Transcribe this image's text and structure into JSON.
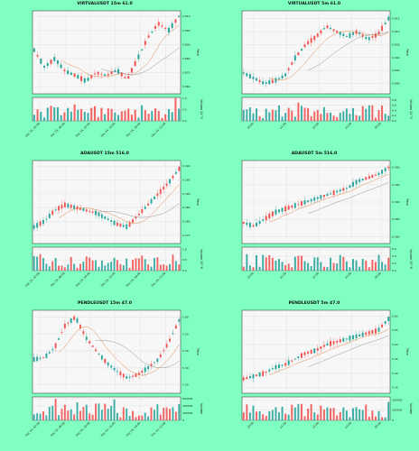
{
  "chart_data": [
    {
      "type": "candlestick",
      "title": "VIRTUALUSDT 15m 61.0",
      "ylabel_price": "Price",
      "ylabel_volume": "Volume  10^5",
      "price_ticks": [
        [
          "0.910",
          0.91
        ],
        [
          "0.900",
          0.9
        ],
        [
          "0.890",
          0.89
        ],
        [
          "0.880",
          0.88
        ],
        [
          "0.870",
          0.87
        ],
        [
          "0.860",
          0.86
        ]
      ],
      "ylim": [
        0.855,
        0.914
      ],
      "volume_ticks": [
        [
          "1.0",
          1.0
        ],
        [
          "0.5",
          0.5
        ],
        [
          "0.0",
          0.0
        ]
      ],
      "vlim": [
        0,
        1.05
      ],
      "x_ticks": [
        [
          "Dec 24, 02:00",
          0.05
        ],
        [
          "Dec 24, 06:00",
          0.22
        ],
        [
          "Dec 24, 10:00",
          0.39
        ],
        [
          "Dec 24, 14:00",
          0.56
        ],
        [
          "Dec 24, 18:00",
          0.73
        ],
        [
          "Dec 24, 22:00",
          0.9
        ]
      ],
      "waypoints": [
        0.886,
        0.874,
        0.88,
        0.871,
        0.868,
        0.864,
        0.87,
        0.868,
        0.872,
        0.865,
        0.88,
        0.895,
        0.905,
        0.9,
        0.91
      ],
      "n": 44,
      "seed": 11,
      "ma_periods": [
        9,
        21
      ]
    },
    {
      "type": "candlestick",
      "title": "VIRTUALUSDT 5m 61.0",
      "ylabel_price": "Price",
      "ylabel_volume": "Volume  10^5",
      "price_ticks": [
        [
          "0.915",
          0.915
        ],
        [
          "0.910",
          0.91
        ],
        [
          "0.905",
          0.905
        ],
        [
          "0.900",
          0.9
        ],
        [
          "0.895",
          0.895
        ],
        [
          "0.890",
          0.89
        ]
      ],
      "ylim": [
        0.886,
        0.918
      ],
      "volume_ticks": [
        [
          "0.8",
          0.8
        ],
        [
          "0.6",
          0.6
        ],
        [
          "0.4",
          0.4
        ],
        [
          "0.2",
          0.2
        ],
        [
          "0.0",
          0.0
        ]
      ],
      "vlim": [
        0,
        0.9
      ],
      "x_ticks": [
        [
          "20:00",
          0.08
        ],
        [
          "21:00",
          0.3
        ],
        [
          "22:00",
          0.52
        ],
        [
          "23:00",
          0.74
        ],
        [
          "00:00",
          0.94
        ]
      ],
      "waypoints": [
        0.894,
        0.892,
        0.89,
        0.891,
        0.893,
        0.9,
        0.905,
        0.908,
        0.912,
        0.91,
        0.908,
        0.91,
        0.907,
        0.909,
        0.915
      ],
      "n": 46,
      "seed": 23,
      "ma_periods": [
        9,
        21
      ]
    },
    {
      "type": "candlestick",
      "title": "ADAUSDT 15m 516.0",
      "ylabel_price": "Price",
      "ylabel_volume": "Volume  10^6",
      "price_ticks": [
        [
          "0.400",
          0.4
        ],
        [
          "0.395",
          0.395
        ],
        [
          "0.390",
          0.39
        ],
        [
          "0.385",
          0.385
        ],
        [
          "0.380",
          0.38
        ],
        [
          "0.375",
          0.375
        ]
      ],
      "ylim": [
        0.372,
        0.402
      ],
      "volume_ticks": [
        [
          "1.0",
          1.0
        ],
        [
          "0.5",
          0.5
        ],
        [
          "0.0",
          0.0
        ]
      ],
      "vlim": [
        0,
        1.1
      ],
      "x_ticks": [
        [
          "Dec 24, 02:00",
          0.05
        ],
        [
          "Dec 24, 06:00",
          0.22
        ],
        [
          "Dec 24, 10:00",
          0.39
        ],
        [
          "Dec 24, 14:00",
          0.56
        ],
        [
          "Dec 24, 18:00",
          0.73
        ],
        [
          "Dec 24, 22:00",
          0.9
        ]
      ],
      "waypoints": [
        0.378,
        0.38,
        0.384,
        0.386,
        0.385,
        0.384,
        0.383,
        0.381,
        0.379,
        0.378,
        0.382,
        0.386,
        0.39,
        0.394,
        0.399
      ],
      "n": 48,
      "seed": 37,
      "ma_periods": [
        9,
        21
      ]
    },
    {
      "type": "candlestick",
      "title": "ADAUSDT 5m 516.0",
      "ylabel_price": "Price",
      "ylabel_volume": "Volume  10^6",
      "price_ticks": [
        [
          "0.400",
          0.4
        ],
        [
          "0.395",
          0.395
        ],
        [
          "0.390",
          0.39
        ],
        [
          "0.385",
          0.385
        ],
        [
          "0.380",
          0.38
        ]
      ],
      "ylim": [
        0.378,
        0.402
      ],
      "volume_ticks": [
        [
          "0.6",
          0.6
        ],
        [
          "0.4",
          0.4
        ],
        [
          "0.2",
          0.2
        ],
        [
          "0.0",
          0.0
        ]
      ],
      "vlim": [
        0,
        0.65
      ],
      "x_ticks": [
        [
          "20:00",
          0.08
        ],
        [
          "21:00",
          0.3
        ],
        [
          "22:00",
          0.52
        ],
        [
          "23:00",
          0.74
        ],
        [
          "00:00",
          0.94
        ]
      ],
      "waypoints": [
        0.384,
        0.383,
        0.385,
        0.387,
        0.388,
        0.389,
        0.39,
        0.391,
        0.392,
        0.393,
        0.394,
        0.396,
        0.397,
        0.398,
        0.4
      ],
      "n": 46,
      "seed": 51,
      "ma_periods": [
        9,
        21
      ]
    },
    {
      "type": "candlestick",
      "title": "PENDLEUSDT 15m 47.0",
      "ylabel_price": "Price",
      "ylabel_volume": "Volume",
      "price_ticks": [
        [
          "5.60",
          5.6
        ],
        [
          "5.50",
          5.5
        ],
        [
          "5.40",
          5.4
        ],
        [
          "5.30",
          5.3
        ],
        [
          "5.20",
          5.2
        ]
      ],
      "ylim": [
        5.15,
        5.64
      ],
      "volume_ticks": [
        [
          "600000",
          600000
        ],
        [
          "400000",
          400000
        ],
        [
          "200000",
          200000
        ],
        [
          "0",
          0
        ]
      ],
      "vlim": [
        0,
        650000
      ],
      "x_ticks": [
        [
          "Dec 24, 02:00",
          0.05
        ],
        [
          "Dec 24, 06:00",
          0.22
        ],
        [
          "Dec 24, 10:00",
          0.39
        ],
        [
          "Dec 24, 14:00",
          0.56
        ],
        [
          "Dec 24, 18:00",
          0.73
        ],
        [
          "Dec 24, 22:00",
          0.9
        ]
      ],
      "waypoints": [
        5.35,
        5.36,
        5.42,
        5.55,
        5.6,
        5.48,
        5.4,
        5.33,
        5.28,
        5.24,
        5.26,
        5.3,
        5.35,
        5.45,
        5.58
      ],
      "n": 48,
      "seed": 67,
      "ma_periods": [
        9,
        21
      ]
    },
    {
      "type": "candlestick",
      "title": "PENDLEUSDT 5m 47.0",
      "ylabel_price": "Price",
      "ylabel_volume": "Volume",
      "price_ticks": [
        [
          "5.60",
          5.6
        ],
        [
          "5.55",
          5.55
        ],
        [
          "5.50",
          5.5
        ],
        [
          "5.45",
          5.45
        ],
        [
          "5.40",
          5.4
        ],
        [
          "5.35",
          5.35
        ]
      ],
      "ylim": [
        5.33,
        5.62
      ],
      "volume_ticks": [
        [
          "200000",
          200000
        ],
        [
          "100000",
          100000
        ],
        [
          "0",
          0
        ]
      ],
      "vlim": [
        0,
        230000
      ],
      "x_ticks": [
        [
          "20:00",
          0.08
        ],
        [
          "21:00",
          0.3
        ],
        [
          "22:00",
          0.52
        ],
        [
          "23:00",
          0.74
        ],
        [
          "00:00",
          0.94
        ]
      ],
      "waypoints": [
        5.38,
        5.39,
        5.4,
        5.42,
        5.43,
        5.45,
        5.47,
        5.48,
        5.5,
        5.51,
        5.52,
        5.53,
        5.54,
        5.55,
        5.59
      ],
      "n": 46,
      "seed": 83,
      "ma_periods": [
        9,
        21
      ]
    }
  ]
}
